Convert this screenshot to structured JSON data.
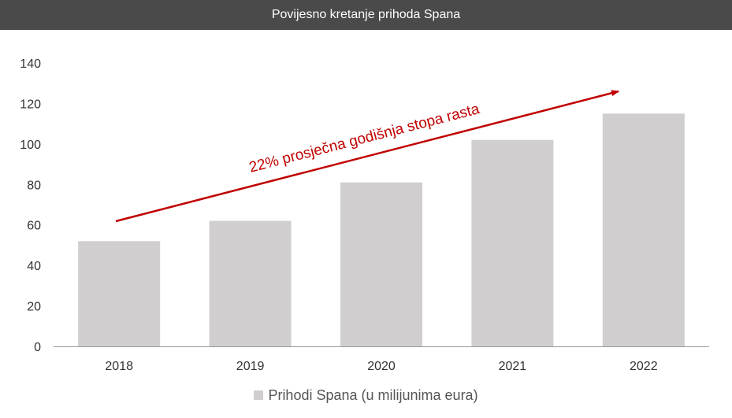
{
  "chart_data": {
    "type": "bar",
    "title": "Povijesno kretanje prihoda Spana",
    "categories": [
      "2018",
      "2019",
      "2020",
      "2021",
      "2022"
    ],
    "series": [
      {
        "name": "Prihodi Spana (u milijunima eura)",
        "values": [
          52,
          62,
          81,
          102,
          115
        ]
      }
    ],
    "ylim": [
      0,
      140
    ],
    "yticks": [
      0,
      20,
      40,
      60,
      80,
      100,
      120,
      140
    ],
    "annotation": "22% prosječna godišnja stopa rasta",
    "grid": false,
    "legend_position": "bottom"
  },
  "colors": {
    "title_bg": "#4a4a4a",
    "bar": "#d0cece",
    "arrow": "#c00000",
    "axis": "#999999"
  }
}
